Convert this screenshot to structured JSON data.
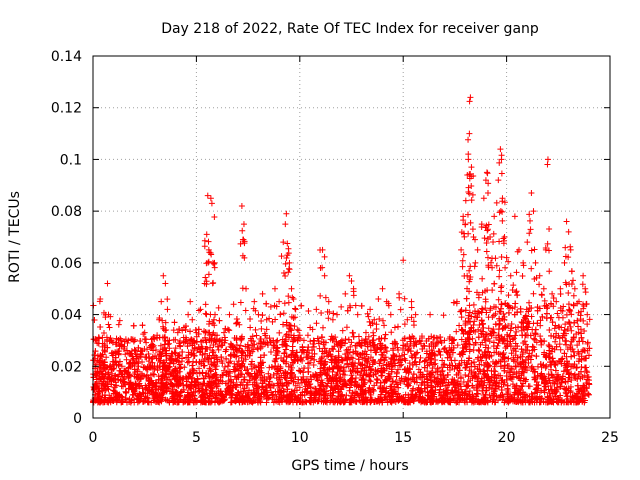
{
  "chart_data": {
    "type": "scatter",
    "title": "Day 218 of 2022, Rate Of TEC Index for receiver ganp",
    "xlabel": "GPS time / hours",
    "ylabel": "ROTI / TECUs",
    "xlim": [
      0,
      25
    ],
    "ylim": [
      0,
      0.14
    ],
    "xticks": [
      0,
      5,
      10,
      15,
      20,
      25
    ],
    "xtick_labels": [
      "0",
      "5",
      "10",
      "15",
      "20",
      "25"
    ],
    "yticks": [
      0,
      0.02,
      0.04,
      0.06,
      0.08,
      0.1,
      0.12,
      0.14
    ],
    "ytick_labels": [
      "0",
      "0.02",
      "0.04",
      "0.06",
      "0.08",
      "0.1",
      "0.12",
      "0.14"
    ],
    "grid": true,
    "marker": "+",
    "color": "#ff0000",
    "data_x_range": [
      0,
      24
    ],
    "series": [
      {
        "name": "ROTI",
        "points": [
          [
            0.05,
            0.012
          ],
          [
            0.1,
            0.02
          ],
          [
            0.15,
            0.03
          ],
          [
            0.2,
            0.018
          ],
          [
            0.3,
            0.015
          ],
          [
            0.35,
            0.046
          ],
          [
            0.4,
            0.024
          ],
          [
            0.5,
            0.013
          ],
          [
            0.6,
            0.039
          ],
          [
            0.7,
            0.052
          ],
          [
            0.75,
            0.04
          ],
          [
            0.8,
            0.035
          ],
          [
            0.9,
            0.025
          ],
          [
            1.0,
            0.019
          ],
          [
            1.1,
            0.022
          ],
          [
            1.2,
            0.016
          ],
          [
            1.3,
            0.028
          ],
          [
            1.4,
            0.02
          ],
          [
            1.5,
            0.014
          ],
          [
            1.6,
            0.018
          ],
          [
            1.7,
            0.025
          ],
          [
            1.8,
            0.021
          ],
          [
            1.9,
            0.012
          ],
          [
            2.0,
            0.017
          ],
          [
            2.1,
            0.023
          ],
          [
            2.2,
            0.02
          ],
          [
            2.3,
            0.015
          ],
          [
            2.4,
            0.026
          ],
          [
            2.5,
            0.033
          ],
          [
            2.6,
            0.019
          ],
          [
            2.7,
            0.022
          ],
          [
            2.8,
            0.028
          ],
          [
            2.9,
            0.017
          ],
          [
            3.0,
            0.024
          ],
          [
            3.1,
            0.032
          ],
          [
            3.2,
            0.038
          ],
          [
            3.3,
            0.045
          ],
          [
            3.4,
            0.055
          ],
          [
            3.5,
            0.052
          ],
          [
            3.6,
            0.042
          ],
          [
            3.7,
            0.03
          ],
          [
            3.8,
            0.025
          ],
          [
            3.9,
            0.021
          ],
          [
            4.0,
            0.027
          ],
          [
            4.1,
            0.033
          ],
          [
            4.2,
            0.028
          ],
          [
            4.3,
            0.022
          ],
          [
            4.4,
            0.035
          ],
          [
            4.6,
            0.04
          ],
          [
            4.7,
            0.045
          ],
          [
            4.8,
            0.038
          ],
          [
            4.9,
            0.029
          ],
          [
            5.0,
            0.033
          ],
          [
            5.2,
            0.042
          ],
          [
            5.4,
            0.052
          ],
          [
            5.5,
            0.071
          ],
          [
            5.55,
            0.086
          ],
          [
            5.6,
            0.065
          ],
          [
            5.7,
            0.085
          ],
          [
            5.75,
            0.083
          ],
          [
            5.8,
            0.06
          ],
          [
            5.9,
            0.04
          ],
          [
            6.0,
            0.032
          ],
          [
            6.2,
            0.028
          ],
          [
            6.4,
            0.03
          ],
          [
            6.6,
            0.04
          ],
          [
            6.8,
            0.044
          ],
          [
            7.0,
            0.037
          ],
          [
            7.2,
            0.082
          ],
          [
            7.25,
            0.069
          ],
          [
            7.3,
            0.075
          ],
          [
            7.4,
            0.05
          ],
          [
            7.6,
            0.035
          ],
          [
            7.8,
            0.045
          ],
          [
            8.0,
            0.04
          ],
          [
            8.2,
            0.048
          ],
          [
            8.4,
            0.038
          ],
          [
            8.6,
            0.043
          ],
          [
            8.8,
            0.05
          ],
          [
            9.0,
            0.045
          ],
          [
            9.2,
            0.068
          ],
          [
            9.3,
            0.075
          ],
          [
            9.35,
            0.079
          ],
          [
            9.4,
            0.063
          ],
          [
            9.5,
            0.06
          ],
          [
            9.6,
            0.05
          ],
          [
            9.7,
            0.046
          ],
          [
            9.8,
            0.042
          ],
          [
            10.0,
            0.032
          ],
          [
            10.2,
            0.03
          ],
          [
            10.5,
            0.035
          ],
          [
            10.8,
            0.042
          ],
          [
            11.0,
            0.058
          ],
          [
            11.1,
            0.065
          ],
          [
            11.2,
            0.055
          ],
          [
            11.4,
            0.045
          ],
          [
            11.6,
            0.038
          ],
          [
            11.8,
            0.04
          ],
          [
            12.0,
            0.043
          ],
          [
            12.2,
            0.048
          ],
          [
            12.4,
            0.055
          ],
          [
            12.5,
            0.053
          ],
          [
            12.6,
            0.05
          ],
          [
            12.8,
            0.04
          ],
          [
            13.0,
            0.03
          ],
          [
            13.2,
            0.033
          ],
          [
            13.4,
            0.042
          ],
          [
            13.6,
            0.038
          ],
          [
            13.8,
            0.046
          ],
          [
            14.0,
            0.05
          ],
          [
            14.2,
            0.045
          ],
          [
            14.4,
            0.04
          ],
          [
            14.6,
            0.035
          ],
          [
            14.8,
            0.048
          ],
          [
            15.0,
            0.061
          ],
          [
            15.2,
            0.038
          ],
          [
            15.4,
            0.045
          ],
          [
            15.6,
            0.04
          ],
          [
            15.8,
            0.03
          ],
          [
            16.0,
            0.028
          ],
          [
            16.3,
            0.04
          ],
          [
            16.6,
            0.031
          ],
          [
            17.0,
            0.03
          ],
          [
            17.3,
            0.026
          ],
          [
            17.6,
            0.045
          ],
          [
            17.8,
            0.065
          ],
          [
            17.9,
            0.078
          ],
          [
            18.0,
            0.075
          ],
          [
            18.1,
            0.094
          ],
          [
            18.15,
            0.1
          ],
          [
            18.2,
            0.11
          ],
          [
            18.25,
            0.124
          ],
          [
            18.3,
            0.097
          ],
          [
            18.4,
            0.07
          ],
          [
            18.6,
            0.065
          ],
          [
            18.8,
            0.075
          ],
          [
            18.9,
            0.085
          ],
          [
            19.0,
            0.092
          ],
          [
            19.05,
            0.095
          ],
          [
            19.1,
            0.087
          ],
          [
            19.2,
            0.07
          ],
          [
            19.4,
            0.078
          ],
          [
            19.6,
            0.092
          ],
          [
            19.7,
            0.104
          ],
          [
            19.75,
            0.1
          ],
          [
            19.8,
            0.085
          ],
          [
            19.9,
            0.07
          ],
          [
            20.0,
            0.062
          ],
          [
            20.2,
            0.055
          ],
          [
            20.4,
            0.078
          ],
          [
            20.6,
            0.065
          ],
          [
            20.8,
            0.06
          ],
          [
            21.0,
            0.068
          ],
          [
            21.2,
            0.087
          ],
          [
            21.3,
            0.08
          ],
          [
            21.4,
            0.06
          ],
          [
            21.6,
            0.055
          ],
          [
            21.8,
            0.05
          ],
          [
            22.0,
            0.1
          ],
          [
            22.2,
            0.048
          ],
          [
            22.4,
            0.045
          ],
          [
            22.6,
            0.05
          ],
          [
            22.8,
            0.06
          ],
          [
            22.9,
            0.076
          ],
          [
            23.0,
            0.072
          ],
          [
            23.1,
            0.065
          ],
          [
            23.3,
            0.05
          ],
          [
            23.5,
            0.045
          ],
          [
            23.7,
            0.055
          ],
          [
            23.8,
            0.05
          ],
          [
            23.9,
            0.04
          ]
        ]
      }
    ]
  }
}
